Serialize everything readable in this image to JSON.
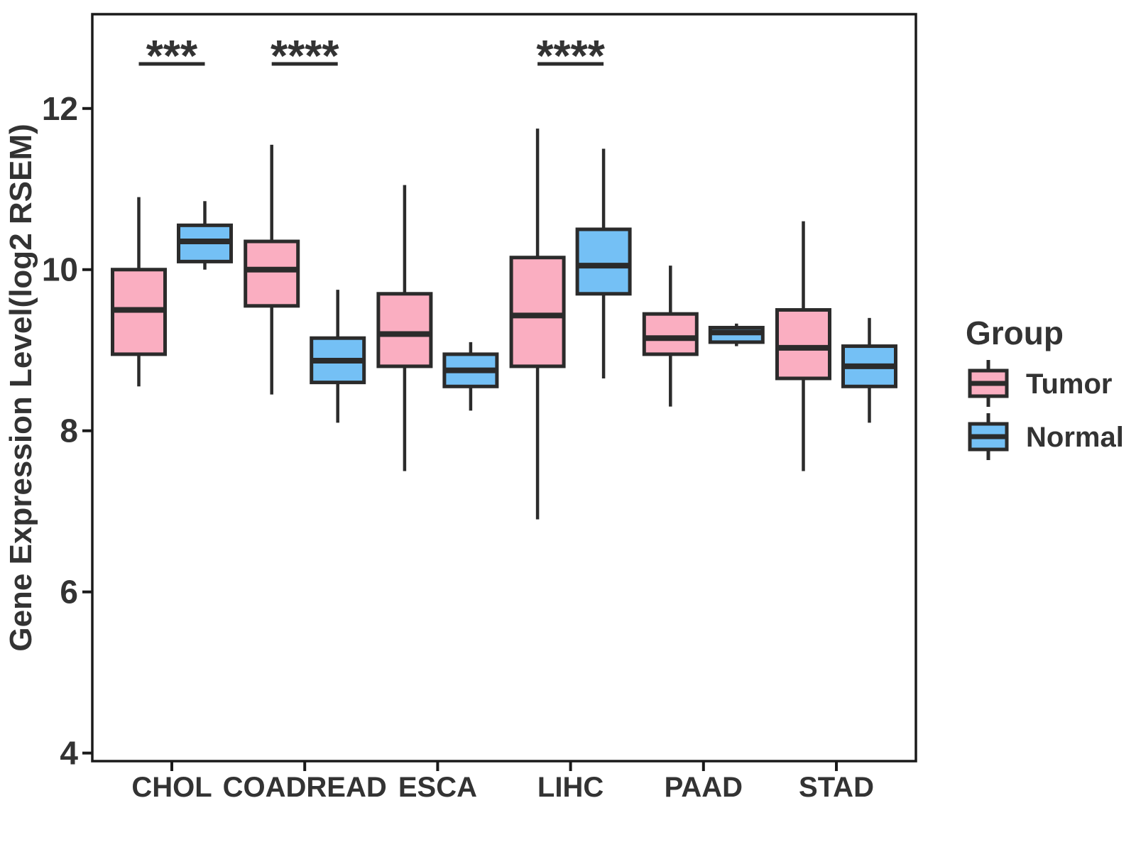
{
  "chart_data": {
    "type": "boxplot",
    "title": "",
    "xlabel": "",
    "ylabel": "Gene Expression Level(log2 RSEM)",
    "ylim": [
      3.9,
      13.17
    ],
    "yticks": [
      4,
      6,
      8,
      10,
      12
    ],
    "grid": "off",
    "categories": [
      "CHOL",
      "COADREAD",
      "ESCA",
      "LIHC",
      "PAAD",
      "STAD"
    ],
    "groups": [
      "Tumor",
      "Normal"
    ],
    "series": [
      {
        "name": "Tumor",
        "boxes": [
          {
            "category": "CHOL",
            "whisker_low": 8.55,
            "q1": 8.95,
            "median": 9.5,
            "q3": 10.0,
            "whisker_high": 10.9
          },
          {
            "category": "COADREAD",
            "whisker_low": 8.45,
            "q1": 9.55,
            "median": 10.0,
            "q3": 10.35,
            "whisker_high": 11.55
          },
          {
            "category": "ESCA",
            "whisker_low": 7.5,
            "q1": 8.8,
            "median": 9.2,
            "q3": 9.7,
            "whisker_high": 11.05
          },
          {
            "category": "LIHC",
            "whisker_low": 6.9,
            "q1": 8.8,
            "median": 9.43,
            "q3": 10.15,
            "whisker_high": 11.75
          },
          {
            "category": "PAAD",
            "whisker_low": 8.3,
            "q1": 8.95,
            "median": 9.15,
            "q3": 9.45,
            "whisker_high": 10.05
          },
          {
            "category": "STAD",
            "whisker_low": 7.5,
            "q1": 8.65,
            "median": 9.03,
            "q3": 9.5,
            "whisker_high": 10.6
          }
        ]
      },
      {
        "name": "Normal",
        "boxes": [
          {
            "category": "CHOL",
            "whisker_low": 10.0,
            "q1": 10.1,
            "median": 10.35,
            "q3": 10.55,
            "whisker_high": 10.85
          },
          {
            "category": "COADREAD",
            "whisker_low": 8.1,
            "q1": 8.6,
            "median": 8.87,
            "q3": 9.15,
            "whisker_high": 9.75
          },
          {
            "category": "ESCA",
            "whisker_low": 8.25,
            "q1": 8.55,
            "median": 8.75,
            "q3": 8.95,
            "whisker_high": 9.1
          },
          {
            "category": "LIHC",
            "whisker_low": 8.65,
            "q1": 9.7,
            "median": 10.05,
            "q3": 10.5,
            "whisker_high": 11.5
          },
          {
            "category": "PAAD",
            "whisker_low": 9.05,
            "q1": 9.1,
            "median": 9.22,
            "q3": 9.28,
            "whisker_high": 9.33
          },
          {
            "category": "STAD",
            "whisker_low": 8.1,
            "q1": 8.55,
            "median": 8.8,
            "q3": 9.05,
            "whisker_high": 9.4
          }
        ]
      }
    ],
    "significance": [
      {
        "category": "CHOL",
        "label": "***"
      },
      {
        "category": "COADREAD",
        "label": "****"
      },
      {
        "category": "LIHC",
        "label": "****"
      }
    ],
    "legend": {
      "title": "Group",
      "position": "right",
      "entries": [
        {
          "label": "Tumor",
          "color": "#FAAEC1"
        },
        {
          "label": "Normal",
          "color": "#74C0F5"
        }
      ]
    },
    "colors": {
      "tumor_fill": "#FAAEC1",
      "normal_fill": "#74C0F5",
      "line": "#2B2B2B",
      "text": "#333333",
      "background": "#FFFFFF"
    }
  }
}
